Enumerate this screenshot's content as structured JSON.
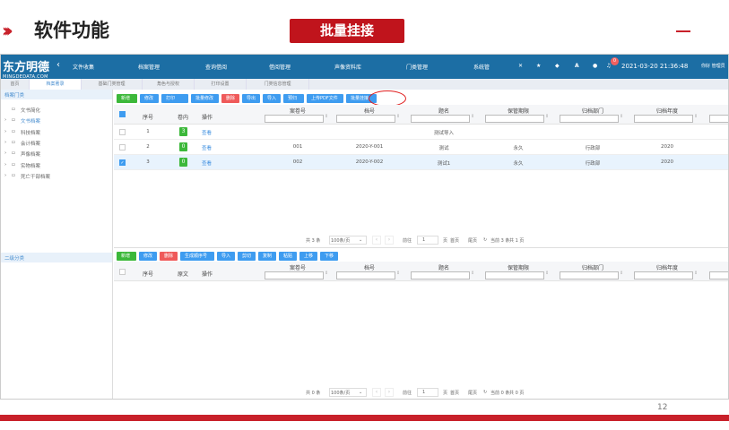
{
  "slide": {
    "title": "软件功能",
    "highlight": "批量挂接",
    "page": "12"
  },
  "nav": {
    "logo": "东方明德",
    "logo_sub": "MINGDEDATA.COM",
    "items": [
      "文件收集",
      "档案管理",
      "查询借阅",
      "借阅管理",
      "声像资料库",
      "门类管理",
      "系统管"
    ],
    "notifications": "0",
    "datetime": "2021-03-20 21:36:48",
    "user": "你好 管理员"
  },
  "tabs": [
    "首页",
    "档案著录",
    "基础门类管理",
    "角色与授权",
    "打印设置",
    "门类信息管理"
  ],
  "sidebar": {
    "title": "档案门类",
    "items": [
      "文书简化",
      "文书档案",
      "科技档案",
      "会计档案",
      "声像档案",
      "实物档案",
      "死亡干部档案"
    ],
    "title2": "二级分类"
  },
  "toolbar1": [
    "新增",
    "修改",
    "打印",
    "批量修改",
    "删除",
    "导出",
    "导入",
    "预归档",
    "上传PDF文件",
    "批量挂接"
  ],
  "toolbar2": [
    "新增",
    "修改",
    "删除",
    "生成顺序号",
    "导入",
    "剪切",
    "复制",
    "粘贴",
    "上移",
    "下移"
  ],
  "columns": [
    "序号",
    "卷内",
    "操作",
    "案卷号",
    "档号",
    "题名",
    "保管期限",
    "归档部门",
    "归档年度"
  ],
  "columns2": [
    "序号",
    "原文",
    "操作",
    "案卷号",
    "档号",
    "题名",
    "保管期限",
    "归档部门",
    "归档年度"
  ],
  "rows": [
    {
      "no": "1",
      "count": "3",
      "action": "查看",
      "case": "",
      "code": "",
      "title": "测试导入",
      "period": "",
      "dept": "",
      "year": "",
      "checked": false
    },
    {
      "no": "2",
      "count": "0",
      "action": "查看",
      "case": "001",
      "code": "2020-Y-001",
      "title": "测试",
      "period": "永久",
      "dept": "行政部",
      "year": "2020",
      "checked": false
    },
    {
      "no": "3",
      "count": "0",
      "action": "查看",
      "case": "002",
      "code": "2020-Y-002",
      "title": "测试1",
      "period": "永久",
      "dept": "行政部",
      "year": "2020",
      "checked": true
    }
  ],
  "pager1": {
    "total": "共 3 条",
    "size": "100条/页",
    "goto": "前往",
    "page": "1",
    "unit": "页",
    "first": "首页",
    "last": "尾页",
    "current": "当前 3 条",
    "pages": "共 1 页"
  },
  "pager2": {
    "total": "共 0 条",
    "size": "100条/页",
    "goto": "前往",
    "page": "1",
    "unit": "页",
    "first": "首页",
    "last": "尾页",
    "current": "当前 0 条",
    "pages": "共 0 页"
  },
  "colors": {
    "nav": "#1c6ea4",
    "accent": "#c8202a",
    "button": "#3e9cf0"
  }
}
